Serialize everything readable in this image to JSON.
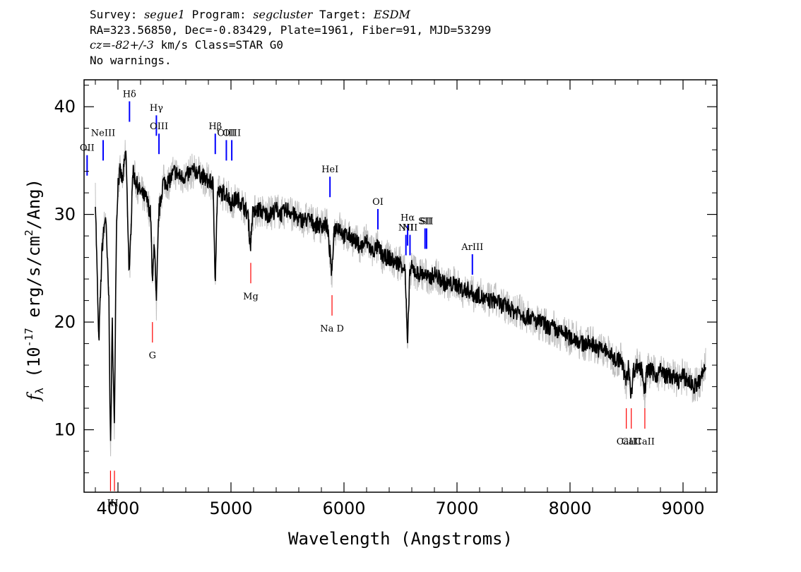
{
  "header": {
    "line1": {
      "survey_key": "Survey: ",
      "survey": "segue1",
      "program_key": " Program: ",
      "program": "segcluster",
      "target_key": " Target: ",
      "target": "ESDM"
    },
    "line2": "RA=323.56850, Dec=-0.83429, Plate=1961, Fiber=91, MJD=53299",
    "line3": {
      "cz": "cz=-82+/-3",
      "rest": " km/s Class=STAR G0"
    },
    "line4": "No warnings."
  },
  "chart_data": {
    "type": "line",
    "title": "",
    "xlabel": "Wavelength (Angstroms)",
    "ylabel": "f_λ (10^-17 erg/s/cm^2/Ang)",
    "xlim": [
      3700,
      9300
    ],
    "ylim": [
      4.2,
      42.5
    ],
    "x_ticks": [
      4000,
      5000,
      6000,
      7000,
      8000,
      9000
    ],
    "y_ticks": [
      10,
      20,
      30,
      40
    ],
    "grid": false,
    "series": [
      {
        "name": "",
        "color": "#000000",
        "points": [
          [
            3800,
            31.5
          ],
          [
            3830,
            18
          ],
          [
            3860,
            27
          ],
          [
            3890,
            30
          ],
          [
            3920,
            22
          ],
          [
            3934,
            8
          ],
          [
            3950,
            20
          ],
          [
            3968,
            10
          ],
          [
            3985,
            28
          ],
          [
            4000,
            33
          ],
          [
            4020,
            34
          ],
          [
            4040,
            33
          ],
          [
            4070,
            36
          ],
          [
            4101,
            24
          ],
          [
            4130,
            34
          ],
          [
            4160,
            33
          ],
          [
            4200,
            32
          ],
          [
            4250,
            31.5
          ],
          [
            4290,
            30
          ],
          [
            4305,
            23
          ],
          [
            4320,
            28
          ],
          [
            4340,
            21.5
          ],
          [
            4360,
            30
          ],
          [
            4400,
            33
          ],
          [
            4450,
            33
          ],
          [
            4500,
            34
          ],
          [
            4550,
            33.5
          ],
          [
            4600,
            33.5
          ],
          [
            4650,
            34
          ],
          [
            4700,
            34
          ],
          [
            4750,
            33.5
          ],
          [
            4800,
            33
          ],
          [
            4840,
            33
          ],
          [
            4861,
            24
          ],
          [
            4880,
            32
          ],
          [
            4920,
            32
          ],
          [
            4960,
            32
          ],
          [
            5000,
            31
          ],
          [
            5050,
            31.5
          ],
          [
            5100,
            31
          ],
          [
            5150,
            30
          ],
          [
            5172,
            27
          ],
          [
            5190,
            30
          ],
          [
            5250,
            30.5
          ],
          [
            5300,
            30
          ],
          [
            5350,
            30
          ],
          [
            5400,
            30.5
          ],
          [
            5450,
            30
          ],
          [
            5500,
            30.5
          ],
          [
            5550,
            30
          ],
          [
            5600,
            29.5
          ],
          [
            5650,
            29.5
          ],
          [
            5700,
            29.5
          ],
          [
            5750,
            29
          ],
          [
            5800,
            29
          ],
          [
            5850,
            29
          ],
          [
            5880,
            26
          ],
          [
            5893,
            24
          ],
          [
            5910,
            28.5
          ],
          [
            5950,
            29
          ],
          [
            6000,
            28
          ],
          [
            6050,
            28
          ],
          [
            6100,
            27.5
          ],
          [
            6150,
            27
          ],
          [
            6200,
            27.5
          ],
          [
            6250,
            26.5
          ],
          [
            6300,
            27
          ],
          [
            6350,
            26
          ],
          [
            6400,
            26
          ],
          [
            6450,
            25.5
          ],
          [
            6500,
            25.5
          ],
          [
            6540,
            25
          ],
          [
            6563,
            17.5
          ],
          [
            6580,
            24.5
          ],
          [
            6600,
            25
          ],
          [
            6650,
            24.5
          ],
          [
            6700,
            24.5
          ],
          [
            6750,
            24
          ],
          [
            6800,
            24.5
          ],
          [
            6850,
            24
          ],
          [
            6900,
            23.5
          ],
          [
            6950,
            23.5
          ],
          [
            7000,
            23.5
          ],
          [
            7050,
            23
          ],
          [
            7100,
            23
          ],
          [
            7150,
            22.5
          ],
          [
            7200,
            22.5
          ],
          [
            7250,
            22
          ],
          [
            7300,
            22
          ],
          [
            7350,
            22
          ],
          [
            7400,
            21.5
          ],
          [
            7450,
            21.5
          ],
          [
            7500,
            21
          ],
          [
            7550,
            21
          ],
          [
            7600,
            20.5
          ],
          [
            7650,
            20.5
          ],
          [
            7700,
            20
          ],
          [
            7750,
            20
          ],
          [
            7800,
            19.5
          ],
          [
            7850,
            19.5
          ],
          [
            7900,
            19
          ],
          [
            7950,
            19
          ],
          [
            8000,
            18.5
          ],
          [
            8050,
            18.5
          ],
          [
            8100,
            18
          ],
          [
            8150,
            18
          ],
          [
            8200,
            18
          ],
          [
            8250,
            17.5
          ],
          [
            8300,
            17.5
          ],
          [
            8350,
            17
          ],
          [
            8400,
            16.5
          ],
          [
            8450,
            16.5
          ],
          [
            8498,
            14.5
          ],
          [
            8520,
            16
          ],
          [
            8542,
            13
          ],
          [
            8560,
            15.5
          ],
          [
            8600,
            16
          ],
          [
            8640,
            15.5
          ],
          [
            8662,
            13.5
          ],
          [
            8680,
            15.5
          ],
          [
            8720,
            15.5
          ],
          [
            8760,
            15
          ],
          [
            8800,
            15.5
          ],
          [
            8850,
            15
          ],
          [
            8900,
            15
          ],
          [
            8950,
            14.5
          ],
          [
            9000,
            15
          ],
          [
            9050,
            14.5
          ],
          [
            9100,
            14
          ],
          [
            9150,
            14.5
          ],
          [
            9200,
            16
          ]
        ]
      }
    ],
    "emission_lines": [
      {
        "label": "OII",
        "wavelength": 3727,
        "ytop": 35.5,
        "ybot": 33.6,
        "label_y": 35.9
      },
      {
        "label": "NeIII",
        "wavelength": 3869,
        "ytop": 36.9,
        "ybot": 35.0,
        "label_y": 37.3
      },
      {
        "label": "Hδ",
        "wavelength": 4102,
        "ytop": 40.5,
        "ybot": 38.6,
        "label_y": 40.9
      },
      {
        "label": "Hγ",
        "wavelength": 4340,
        "ytop": 39.2,
        "ybot": 37.3,
        "label_y": 39.6
      },
      {
        "label": "OIII",
        "wavelength": 4363,
        "ytop": 37.5,
        "ybot": 35.6,
        "label_y": 37.9
      },
      {
        "label": "Hβ",
        "wavelength": 4861,
        "ytop": 37.5,
        "ybot": 35.6,
        "label_y": 37.9
      },
      {
        "label": "OIII",
        "wavelength": 4959,
        "ytop": 36.9,
        "ybot": 35.0,
        "label_y": 37.3
      },
      {
        "label": "OIII",
        "wavelength": 5007,
        "ytop": 36.9,
        "ybot": 35.0,
        "label_y": 37.3
      },
      {
        "label": "HeI",
        "wavelength": 5876,
        "ytop": 33.5,
        "ybot": 31.6,
        "label_y": 33.9
      },
      {
        "label": "OI",
        "wavelength": 6300,
        "ytop": 30.5,
        "ybot": 28.6,
        "label_y": 30.9
      },
      {
        "label": "NII",
        "wavelength": 6548,
        "ytop": 28.1,
        "ybot": 26.2,
        "label_y": 28.5
      },
      {
        "label": "Hα",
        "wavelength": 6563,
        "ytop": 29.0,
        "ybot": 27.1,
        "label_y": 29.4
      },
      {
        "label": "NII",
        "wavelength": 6584,
        "ytop": 28.1,
        "ybot": 26.2,
        "label_y": 28.5
      },
      {
        "label": "SII",
        "wavelength": 6717,
        "ytop": 28.7,
        "ybot": 26.8,
        "label_y": 29.1
      },
      {
        "label": "SII",
        "wavelength": 6731,
        "ytop": 28.7,
        "ybot": 26.8,
        "label_y": 29.1
      },
      {
        "label": "ArIII",
        "wavelength": 7136,
        "ytop": 26.3,
        "ybot": 24.4,
        "label_y": 26.7
      }
    ],
    "absorption_lines": [
      {
        "label": "K",
        "wavelength": 3934,
        "ytop": 6.2,
        "ybot": 4.3,
        "label_y": 3.7
      },
      {
        "label": "H",
        "wavelength": 3969,
        "ytop": 6.2,
        "ybot": 4.3,
        "label_y": 3.7
      },
      {
        "label": "G",
        "wavelength": 4305,
        "ytop": 20.0,
        "ybot": 18.1,
        "label_y": 17.4
      },
      {
        "label": "Mg",
        "wavelength": 5175,
        "ytop": 25.5,
        "ybot": 23.6,
        "label_y": 22.9
      },
      {
        "label": "Na D",
        "wavelength": 5894,
        "ytop": 22.5,
        "ybot": 20.6,
        "label_y": 19.9
      },
      {
        "label": "CaII",
        "wavelength": 8498,
        "ytop": 12.0,
        "ybot": 10.1,
        "label_y": 9.4
      },
      {
        "label": "CaII",
        "wavelength": 8542,
        "ytop": 12.0,
        "ybot": 10.1,
        "label_y": 9.4
      },
      {
        "label": "CaII",
        "wavelength": 8662,
        "ytop": 12.0,
        "ybot": 10.1,
        "label_y": 9.4
      }
    ],
    "colors": {
      "flux": "#000000",
      "error": "#c0c0c0",
      "emission": "#0000ff",
      "absorption": "#ff0000"
    }
  }
}
